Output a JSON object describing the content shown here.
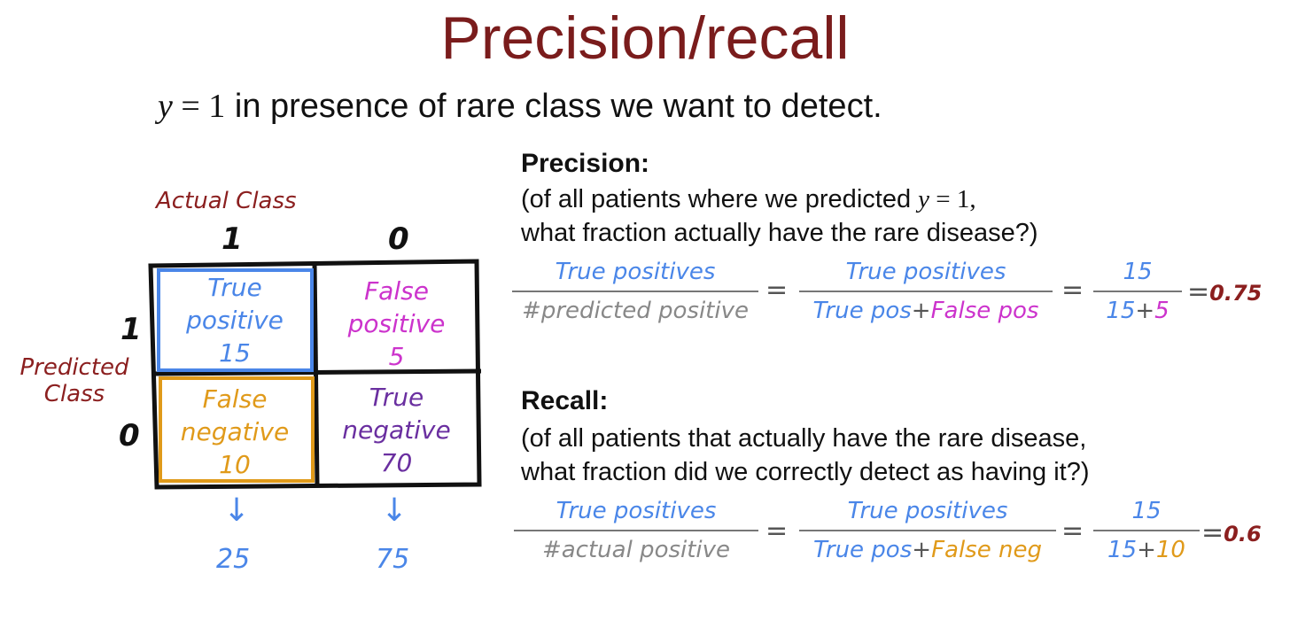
{
  "title": "Precision/recall",
  "subtitle": {
    "math_var": "y",
    "math_eq": " = 1",
    "text": " in presence of rare class we want to detect."
  },
  "matrix": {
    "actual_label": "Actual Class",
    "predicted_label_line1": "Predicted",
    "predicted_label_line2": "Class",
    "col_1": "1",
    "col_0": "0",
    "row_1": "1",
    "row_0": "0",
    "tp": {
      "line1": "True",
      "line2": "positive",
      "count": "15"
    },
    "fp": {
      "line1": "False",
      "line2": "positive",
      "count": "5"
    },
    "fn": {
      "line1": "False",
      "line2": "negative",
      "count": "10"
    },
    "tn": {
      "line1": "True",
      "line2": "negative",
      "count": "70"
    },
    "arrow": "↓",
    "col_total_1": "25",
    "col_total_0": "75"
  },
  "precision": {
    "heading": "Precision:",
    "line1_pre": "(of all patients where we predicted ",
    "line1_var": "y",
    "line1_eq": " = 1,",
    "line2": "what fraction actually have the rare disease?)",
    "f1_num": "True positives",
    "f1_den": "#predicted positive",
    "eq": "=",
    "f2_num": "True positives",
    "f2_den_a": "True pos",
    "plus": "+",
    "f2_den_b": "False pos",
    "f3_num": "15",
    "f3_den_a": "15",
    "f3_den_b": "5",
    "result": "0.75"
  },
  "recall": {
    "heading": "Recall:",
    "line1": "(of all patients that actually have the rare disease,",
    "line2": "what fraction did we correctly detect as having it?)",
    "f1_num": "True positives",
    "f1_den": "#actual positive",
    "eq": "=",
    "f2_num": "True positives",
    "f2_den_a": "True pos",
    "plus": "+",
    "f2_den_b": "False neg",
    "f3_num": "15",
    "f3_den_a": "15",
    "f3_den_b": "10",
    "result": "0.6"
  },
  "colors": {
    "title": "#7a1c1c",
    "true_positive": "#4a86e8",
    "false_positive": "#cc33cc",
    "false_negative": "#e09a1a",
    "true_negative": "#6a2fa0"
  }
}
